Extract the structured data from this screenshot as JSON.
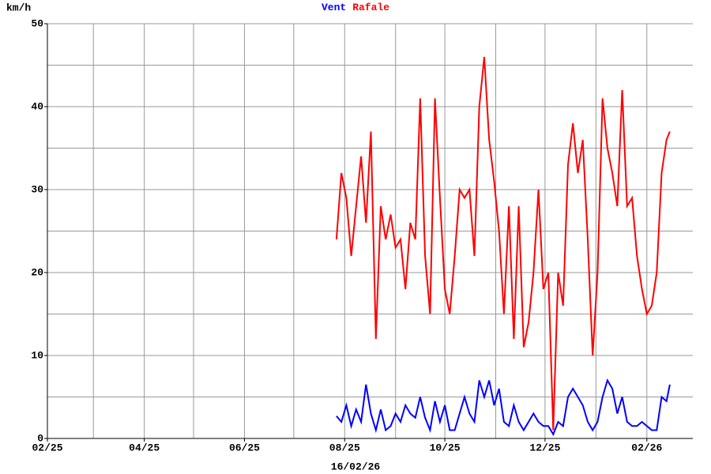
{
  "chart_data": {
    "type": "line",
    "y_label": "km/h",
    "x_label": "16/02/26",
    "xlim": [
      0,
      393
    ],
    "xticks": [
      {
        "value": 0,
        "label": "02/25"
      },
      {
        "value": 59,
        "label": "04/25"
      },
      {
        "value": 120,
        "label": "06/25"
      },
      {
        "value": 181,
        "label": "08/25"
      },
      {
        "value": 242,
        "label": "10/25"
      },
      {
        "value": 303,
        "label": "12/25"
      },
      {
        "value": 365,
        "label": "02/26"
      }
    ],
    "xminor": [
      28,
      89,
      150,
      212,
      273,
      334
    ],
    "ylim": [
      0,
      50
    ],
    "yticks": [
      0,
      10,
      20,
      30,
      40,
      50
    ],
    "yminor": [
      5,
      15,
      25,
      35,
      45
    ],
    "grid": true,
    "x": [
      176,
      179,
      182,
      185,
      188,
      191,
      194,
      197,
      200,
      203,
      206,
      209,
      212,
      215,
      218,
      221,
      224,
      227,
      230,
      233,
      236,
      239,
      242,
      245,
      248,
      251,
      254,
      257,
      260,
      263,
      266,
      269,
      272,
      275,
      278,
      281,
      284,
      287,
      290,
      293,
      296,
      299,
      302,
      305,
      308,
      311,
      314,
      317,
      320,
      323,
      326,
      329,
      332,
      335,
      338,
      341,
      344,
      347,
      350,
      353,
      356,
      359,
      362,
      365,
      368,
      371,
      374,
      377,
      379
    ],
    "series": [
      {
        "name": "Vent",
        "color": "#0000ff",
        "values": [
          2.7,
          2,
          4,
          1.5,
          3.5,
          2,
          6.5,
          3,
          1,
          3.5,
          1,
          1.5,
          3,
          2,
          4,
          3,
          2.5,
          5,
          2.5,
          1,
          4.5,
          2,
          4,
          1,
          1,
          3,
          5,
          3,
          2,
          7,
          5,
          7,
          4,
          6,
          2,
          1.5,
          4,
          2,
          1,
          2,
          3,
          2,
          1.5,
          1.5,
          0.5,
          2,
          1.5,
          5,
          6,
          5,
          4,
          2,
          1,
          2,
          5,
          7,
          6,
          3,
          5,
          2,
          1.5,
          1.5,
          2,
          1.5,
          1,
          1,
          5,
          4.5,
          6.5
        ]
      },
      {
        "name": "Rafale",
        "color": "#ff0000",
        "values": [
          24,
          32,
          29,
          22,
          28,
          34,
          26,
          37,
          12,
          28,
          24,
          27,
          23,
          24,
          18,
          26,
          24,
          41,
          22,
          15,
          41,
          29,
          18,
          15,
          22,
          30,
          29,
          30,
          22,
          40,
          46,
          36,
          31,
          25,
          15,
          28,
          12,
          28,
          11,
          14,
          20,
          30,
          18,
          20,
          1,
          20,
          16,
          33,
          38,
          32,
          36,
          24,
          10,
          20,
          41,
          35,
          32,
          28,
          42,
          28,
          29,
          22,
          18,
          15,
          16,
          20,
          32,
          36,
          37
        ]
      }
    ]
  }
}
